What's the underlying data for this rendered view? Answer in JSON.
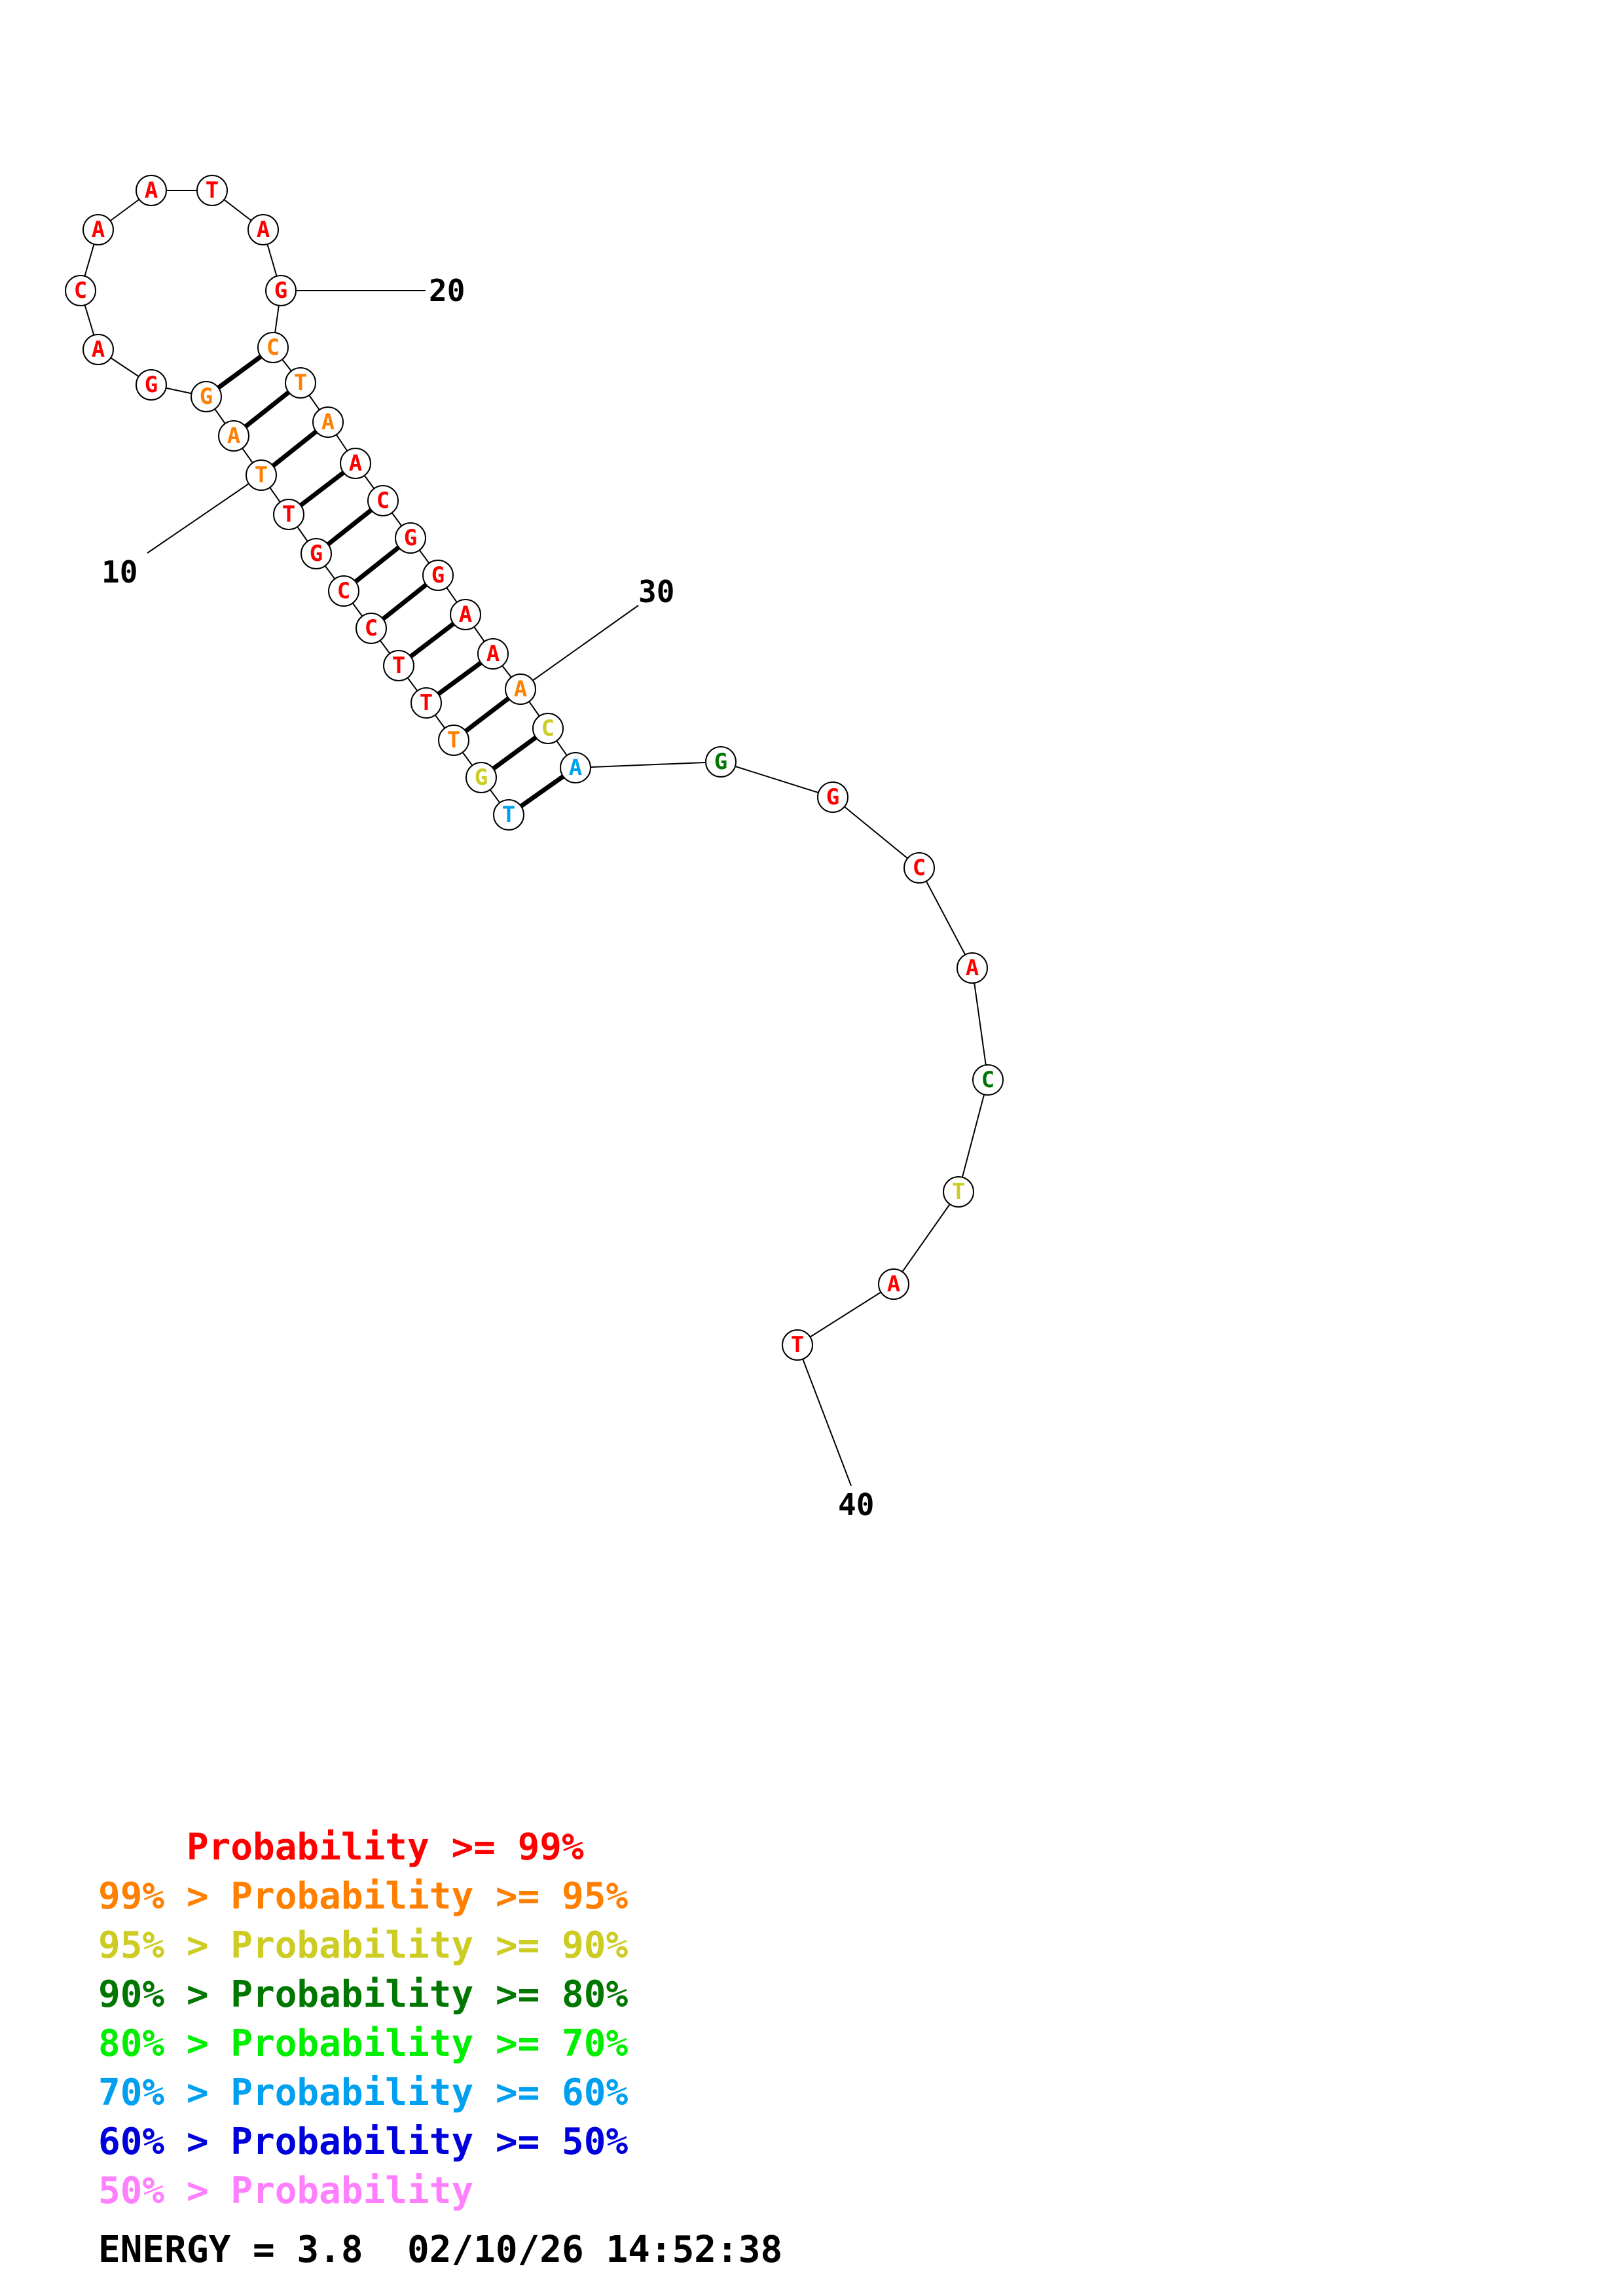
{
  "colors": {
    "p99": "#ff0000",
    "p95": "#ff8000",
    "p90": "#cccc22",
    "p80": "#007700",
    "p70": "#00ee00",
    "p60": "#00a0f0",
    "p50": "#0000dd",
    "p00": "#ff80ff"
  },
  "sequence": [
    {
      "n": 1,
      "base": "T",
      "prob": "p60"
    },
    {
      "n": 2,
      "base": "G",
      "prob": "p90"
    },
    {
      "n": 3,
      "base": "T",
      "prob": "p95"
    },
    {
      "n": 4,
      "base": "T",
      "prob": "p99"
    },
    {
      "n": 5,
      "base": "T",
      "prob": "p99"
    },
    {
      "n": 6,
      "base": "C",
      "prob": "p99"
    },
    {
      "n": 7,
      "base": "C",
      "prob": "p99"
    },
    {
      "n": 8,
      "base": "G",
      "prob": "p99"
    },
    {
      "n": 9,
      "base": "T",
      "prob": "p99"
    },
    {
      "n": 10,
      "base": "T",
      "prob": "p95"
    },
    {
      "n": 11,
      "base": "A",
      "prob": "p95"
    },
    {
      "n": 12,
      "base": "G",
      "prob": "p95"
    },
    {
      "n": 13,
      "base": "G",
      "prob": "p99"
    },
    {
      "n": 14,
      "base": "A",
      "prob": "p99"
    },
    {
      "n": 15,
      "base": "C",
      "prob": "p99"
    },
    {
      "n": 16,
      "base": "A",
      "prob": "p99"
    },
    {
      "n": 17,
      "base": "A",
      "prob": "p99"
    },
    {
      "n": 18,
      "base": "T",
      "prob": "p99"
    },
    {
      "n": 19,
      "base": "A",
      "prob": "p99"
    },
    {
      "n": 20,
      "base": "G",
      "prob": "p99"
    },
    {
      "n": 21,
      "base": "C",
      "prob": "p95"
    },
    {
      "n": 22,
      "base": "T",
      "prob": "p95"
    },
    {
      "n": 23,
      "base": "A",
      "prob": "p95"
    },
    {
      "n": 24,
      "base": "A",
      "prob": "p99"
    },
    {
      "n": 25,
      "base": "C",
      "prob": "p99"
    },
    {
      "n": 26,
      "base": "G",
      "prob": "p99"
    },
    {
      "n": 27,
      "base": "G",
      "prob": "p99"
    },
    {
      "n": 28,
      "base": "A",
      "prob": "p99"
    },
    {
      "n": 29,
      "base": "A",
      "prob": "p99"
    },
    {
      "n": 30,
      "base": "A",
      "prob": "p95"
    },
    {
      "n": 31,
      "base": "C",
      "prob": "p90"
    },
    {
      "n": 32,
      "base": "A",
      "prob": "p60"
    },
    {
      "n": 33,
      "base": "G",
      "prob": "p80"
    },
    {
      "n": 34,
      "base": "G",
      "prob": "p99"
    },
    {
      "n": 35,
      "base": "C",
      "prob": "p99"
    },
    {
      "n": 36,
      "base": "A",
      "prob": "p99"
    },
    {
      "n": 37,
      "base": "C",
      "prob": "p80"
    },
    {
      "n": 38,
      "base": "T",
      "prob": "p90"
    },
    {
      "n": 39,
      "base": "A",
      "prob": "p99"
    },
    {
      "n": 40,
      "base": "T",
      "prob": "p99"
    }
  ],
  "pairs": [
    [
      1,
      32
    ],
    [
      2,
      31
    ],
    [
      3,
      30
    ],
    [
      4,
      29
    ],
    [
      5,
      28
    ],
    [
      6,
      27
    ],
    [
      7,
      26
    ],
    [
      8,
      25
    ],
    [
      9,
      24
    ],
    [
      10,
      23
    ],
    [
      11,
      22
    ],
    [
      12,
      21
    ]
  ],
  "tick_labels": [
    {
      "n": 10,
      "text": "10"
    },
    {
      "n": 20,
      "text": "20"
    },
    {
      "n": 30,
      "text": "30"
    },
    {
      "n": 40,
      "text": "40"
    }
  ],
  "legend": [
    {
      "prefix": "    ",
      "middle": "Probability >= ",
      "suffix": "99%",
      "color": "p99"
    },
    {
      "prefix": "99% > ",
      "middle": "Probability >= ",
      "suffix": "95%",
      "color": "p95"
    },
    {
      "prefix": "95% > ",
      "middle": "Probability >= ",
      "suffix": "90%",
      "color": "p90"
    },
    {
      "prefix": "90% > ",
      "middle": "Probability >= ",
      "suffix": "80%",
      "color": "p80"
    },
    {
      "prefix": "80% > ",
      "middle": "Probability >= ",
      "suffix": "70%",
      "color": "p70"
    },
    {
      "prefix": "70% > ",
      "middle": "Probability >= ",
      "suffix": "60%",
      "color": "p60"
    },
    {
      "prefix": "60% > ",
      "middle": "Probability >= ",
      "suffix": "50%",
      "color": "p50"
    },
    {
      "prefix": "50% > ",
      "middle": "Probability",
      "suffix": "",
      "color": "p00"
    }
  ],
  "footer": {
    "energy_label": "ENERGY = 3.8",
    "timestamp": "02/10/26 14:52:38"
  }
}
